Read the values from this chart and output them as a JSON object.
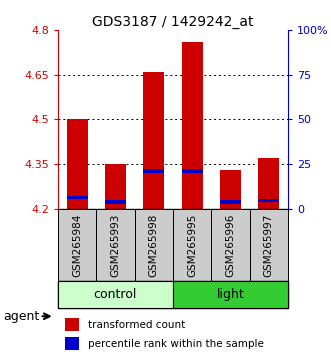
{
  "title": "GDS3187 / 1429242_at",
  "samples": [
    "GSM265984",
    "GSM265993",
    "GSM265998",
    "GSM265995",
    "GSM265996",
    "GSM265997"
  ],
  "groups": [
    {
      "label": "control",
      "indices": [
        0,
        1,
        2
      ],
      "color": "#ccffcc"
    },
    {
      "label": "light",
      "indices": [
        3,
        4,
        5
      ],
      "color": "#33cc33"
    }
  ],
  "ylim": [
    4.2,
    4.8
  ],
  "yticks_left": [
    4.2,
    4.35,
    4.5,
    4.65,
    4.8
  ],
  "yticks_right_labels": [
    "0",
    "25",
    "50",
    "75",
    "100%"
  ],
  "yticks_right_vals": [
    4.2,
    4.35,
    4.5,
    4.65,
    4.8
  ],
  "bar_base": 4.2,
  "bar_tops": [
    4.5,
    4.35,
    4.66,
    4.76,
    4.33,
    4.37
  ],
  "blue_heights": [
    4.238,
    4.222,
    4.328,
    4.328,
    4.222,
    4.228
  ],
  "bar_width": 0.55,
  "bar_color": "#cc0000",
  "blue_color": "#0000cc",
  "blue_bar_height": 0.013,
  "grid_color": "#000000",
  "grid_ticks": [
    4.35,
    4.5,
    4.65
  ],
  "legend_red_label": "transformed count",
  "legend_blue_label": "percentile rank within the sample",
  "agent_label": "agent",
  "left_axis_color": "#cc0000",
  "right_axis_color": "#0000cc",
  "bg_xtick": "#cccccc",
  "title_fontsize": 10
}
